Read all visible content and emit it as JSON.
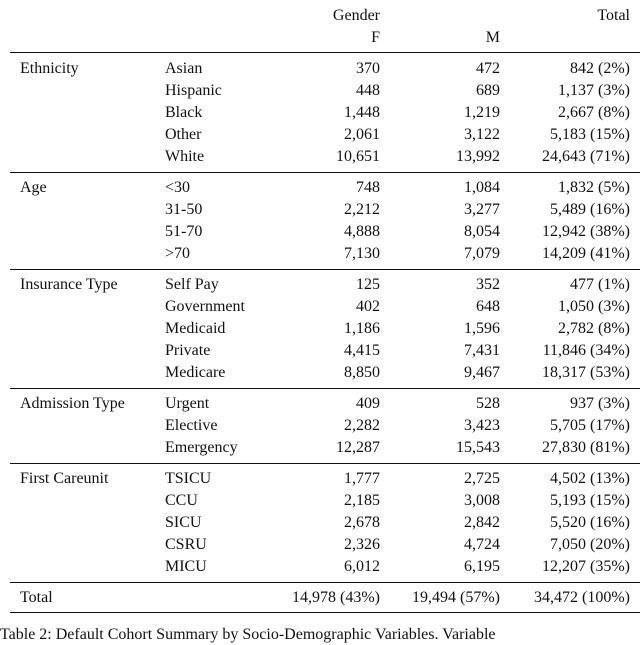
{
  "header": {
    "gender": "Gender",
    "total": "Total",
    "f": "F",
    "m": "M"
  },
  "groups": [
    {
      "label": "Ethnicity",
      "rows": [
        [
          "Asian",
          "370",
          "472",
          "842 (2%)"
        ],
        [
          "Hispanic",
          "448",
          "689",
          "1,137 (3%)"
        ],
        [
          "Black",
          "1,448",
          "1,219",
          "2,667 (8%)"
        ],
        [
          "Other",
          "2,061",
          "3,122",
          "5,183 (15%)"
        ],
        [
          "White",
          "10,651",
          "13,992",
          "24,643 (71%)"
        ]
      ]
    },
    {
      "label": "Age",
      "rows": [
        [
          "<30",
          "748",
          "1,084",
          "1,832 (5%)"
        ],
        [
          "31-50",
          "2,212",
          "3,277",
          "5,489 (16%)"
        ],
        [
          "51-70",
          "4,888",
          "8,054",
          "12,942 (38%)"
        ],
        [
          ">70",
          "7,130",
          "7,079",
          "14,209 (41%)"
        ]
      ]
    },
    {
      "label": "Insurance Type",
      "rows": [
        [
          "Self Pay",
          "125",
          "352",
          "477 (1%)"
        ],
        [
          "Government",
          "402",
          "648",
          "1,050 (3%)"
        ],
        [
          "Medicaid",
          "1,186",
          "1,596",
          "2,782 (8%)"
        ],
        [
          "Private",
          "4,415",
          "7,431",
          "11,846 (34%)"
        ],
        [
          "Medicare",
          "8,850",
          "9,467",
          "18,317 (53%)"
        ]
      ]
    },
    {
      "label": "Admission Type",
      "rows": [
        [
          "Urgent",
          "409",
          "528",
          "937 (3%)"
        ],
        [
          "Elective",
          "2,282",
          "3,423",
          "5,705 (17%)"
        ],
        [
          "Emergency",
          "12,287",
          "15,543",
          "27,830 (81%)"
        ]
      ]
    },
    {
      "label": "First Careunit",
      "rows": [
        [
          "TSICU",
          "1,777",
          "2,725",
          "4,502 (13%)"
        ],
        [
          "CCU",
          "2,185",
          "3,008",
          "5,193 (15%)"
        ],
        [
          "SICU",
          "2,678",
          "2,842",
          "5,520 (16%)"
        ],
        [
          "CSRU",
          "2,326",
          "4,724",
          "7,050 (20%)"
        ],
        [
          "MICU",
          "6,012",
          "6,195",
          "12,207 (35%)"
        ]
      ]
    }
  ],
  "total_row": [
    "Total",
    "14,978 (43%)",
    "19,494 (57%)",
    "34,472 (100%)"
  ],
  "caption": "Table 2: Default Cohort Summary by Socio-Demographic Variables. Variable"
}
